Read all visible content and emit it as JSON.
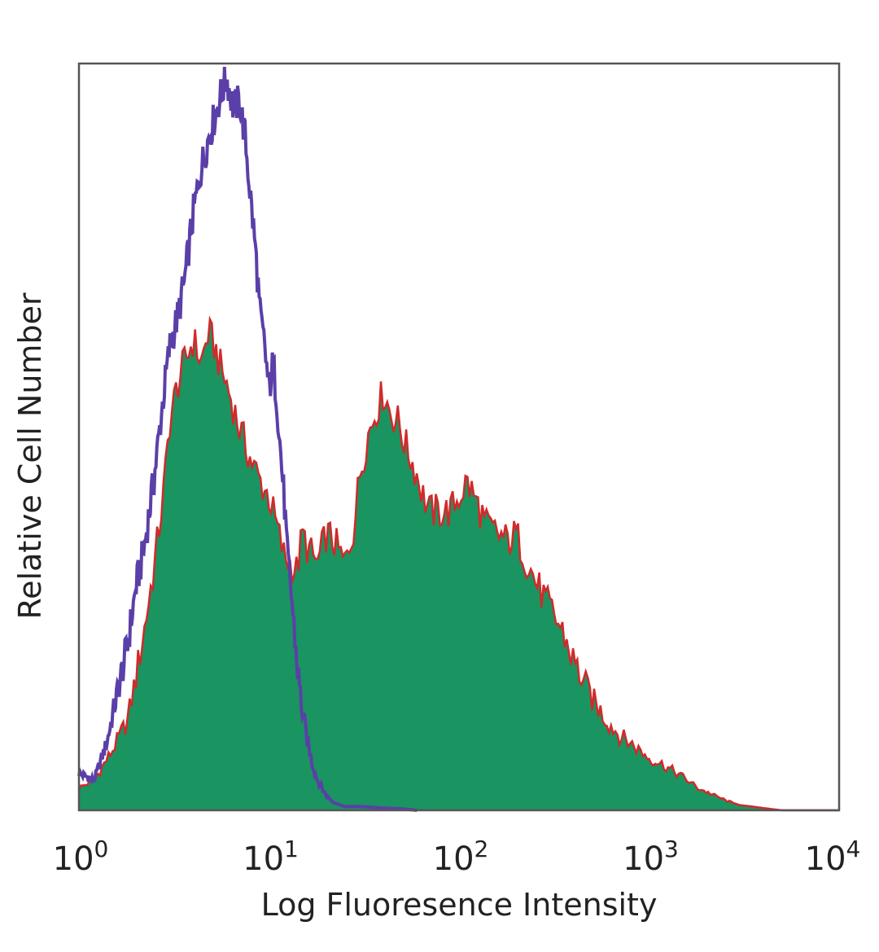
{
  "chart_data": {
    "type": "area",
    "title": "",
    "xlabel": "Log Fluoresence Intensity",
    "ylabel": "Relative Cell Number",
    "x_scale": "log10",
    "xlim": [
      1,
      10000
    ],
    "ylim": [
      0,
      100
    ],
    "grid": false,
    "legend": "none",
    "x_ticks": [
      {
        "base": "10",
        "exp": "0"
      },
      {
        "base": "10",
        "exp": "1"
      },
      {
        "base": "10",
        "exp": "2"
      },
      {
        "base": "10",
        "exp": "3"
      },
      {
        "base": "10",
        "exp": "4"
      }
    ],
    "series": [
      {
        "role": "isotype-control",
        "style": "line",
        "color": "#5b3fa8",
        "x": [
          1.0,
          1.2,
          1.4,
          1.6,
          1.8,
          2.0,
          2.2,
          2.5,
          2.8,
          3.0,
          3.3,
          3.6,
          4.0,
          4.4,
          4.8,
          5.2,
          5.6,
          6.0,
          6.5,
          7.0,
          7.5,
          8.0,
          8.5,
          9.0,
          9.5,
          10.0,
          10.5,
          11.0,
          11.5,
          12.0,
          12.5,
          13.0,
          14.0,
          15.0,
          16.0,
          17.0,
          18.0,
          20.0,
          22.0,
          25.0,
          30.0,
          40.0,
          50.0,
          60.0
        ],
        "y": [
          5,
          4,
          9,
          16,
          22,
          30,
          35,
          45,
          56,
          62,
          66,
          71,
          80,
          86,
          90,
          93,
          96,
          98,
          94,
          95,
          90,
          82,
          75,
          66,
          62,
          56,
          60,
          55,
          48,
          42,
          34,
          30,
          20,
          13,
          9,
          6,
          4,
          2,
          1,
          0.5,
          0.5,
          0.3,
          0.2,
          0
        ]
      },
      {
        "role": "antibody-stained",
        "style": "filled-area",
        "color": "#1a9460",
        "edge_color": "#d12a2a",
        "x": [
          1.0,
          1.2,
          1.5,
          1.8,
          2.0,
          2.2,
          2.5,
          2.8,
          3.0,
          3.3,
          3.6,
          4.0,
          4.4,
          4.8,
          5.2,
          5.6,
          6.0,
          6.5,
          7.0,
          7.5,
          8.0,
          9.0,
          10.0,
          11.0,
          12.0,
          13.0,
          14.0,
          15.0,
          16.0,
          18.0,
          20.0,
          22.0,
          25.0,
          28.0,
          30.0,
          33.0,
          36.0,
          40.0,
          44.0,
          48.0,
          52.0,
          56.0,
          60.0,
          65.0,
          70.0,
          80.0,
          90.0,
          100.0,
          110.0,
          120.0,
          130.0,
          140.0,
          160.0,
          180.0,
          200.0,
          230.0,
          260.0,
          300.0,
          350.0,
          400.0,
          500.0,
          600.0,
          700.0,
          800.0,
          1000.0,
          1200.0,
          1500.0,
          1800.0,
          2200.0,
          2600.0,
          3000.0,
          3500.0,
          4000.0,
          5000.0,
          10000.0
        ],
        "y": [
          3,
          4,
          8,
          12,
          18,
          24,
          33,
          43,
          52,
          57,
          60,
          63,
          60,
          64,
          62,
          59,
          57,
          54,
          51,
          49,
          47,
          44,
          42,
          38,
          34,
          33,
          32,
          37,
          35,
          33,
          37,
          36,
          33,
          38,
          45,
          50,
          53,
          56,
          53,
          52,
          49,
          47,
          45,
          42,
          40,
          40,
          40,
          42,
          44,
          42,
          40,
          38,
          37,
          36,
          37,
          33,
          30,
          27,
          24,
          20,
          15,
          12,
          10,
          9,
          7,
          6,
          4.5,
          3,
          2,
          1.2,
          0.7,
          0.5,
          0.3,
          0,
          0
        ]
      }
    ]
  }
}
